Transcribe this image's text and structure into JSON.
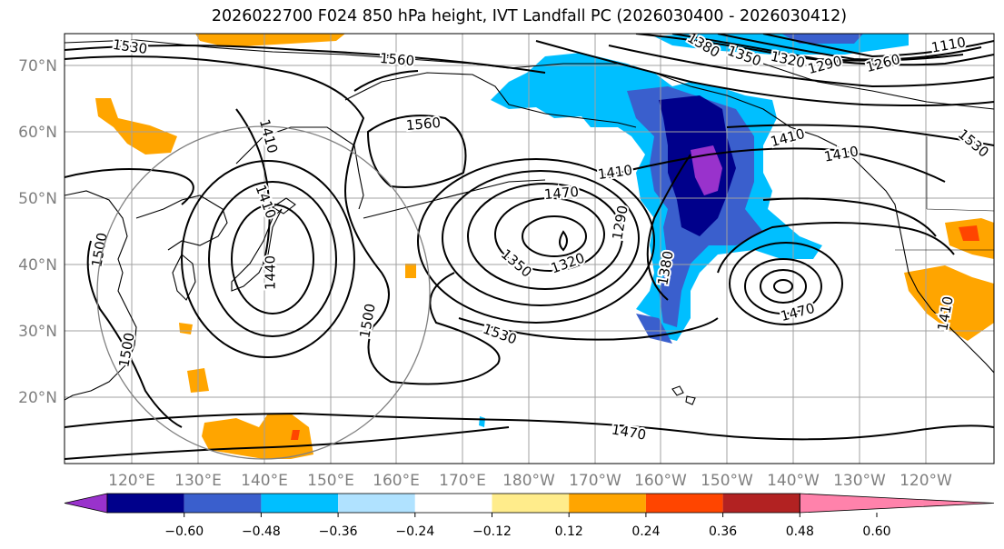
{
  "title": "2026022700 F024 850 hPa height, IVT Landfall PC (2026030400 - 2026030412)",
  "lat_ticks": [
    "70°N",
    "60°N",
    "50°N",
    "40°N",
    "30°N",
    "20°N"
  ],
  "lon_ticks": [
    "120°E",
    "130°E",
    "140°E",
    "150°E",
    "160°E",
    "170°E",
    "180°W",
    "170°W",
    "160°W",
    "150°W",
    "140°W",
    "130°W",
    "120°W"
  ],
  "contour_labels": [
    "1530",
    "1560",
    "1380",
    "1350",
    "1320",
    "1290",
    "1260",
    "1110",
    "1560",
    "1410",
    "1410",
    "1470",
    "1350",
    "1320",
    "1290",
    "1380",
    "1470",
    "1470",
    "1500",
    "1530",
    "1500",
    "1500",
    "1440",
    "1410",
    "1410",
    "1410",
    "1530",
    "1410"
  ],
  "colorbar": {
    "ticks": [
      "−0.60",
      "−0.48",
      "−0.36",
      "−0.24",
      "−0.12",
      "0.12",
      "0.24",
      "0.36",
      "0.48",
      "0.60"
    ],
    "colors": [
      "#9932cc",
      "#00008b",
      "#3a5fcd",
      "#00bfff",
      "#b0e2ff",
      "#ffffff",
      "#ffec8b",
      "#ffa500",
      "#ff4500",
      "#b22222",
      "#ff82ab"
    ]
  },
  "colors": {
    "gridline": "#a0a0a0",
    "ocean_bg": "#ffffff",
    "contour": "#000000",
    "axis_label": "#7f7f7f"
  }
}
